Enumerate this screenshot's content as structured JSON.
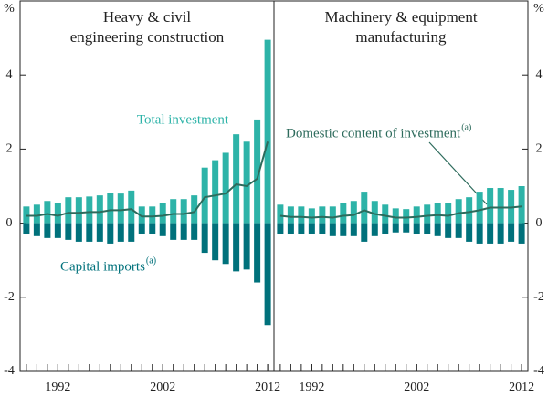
{
  "chart_data": [
    {
      "type": "bar",
      "title": [
        "Heavy & civil",
        "engineering construction"
      ],
      "y_unit": "%",
      "x": [
        1989,
        1990,
        1991,
        1992,
        1993,
        1994,
        1995,
        1996,
        1997,
        1998,
        1999,
        2000,
        2001,
        2002,
        2003,
        2004,
        2005,
        2006,
        2007,
        2008,
        2009,
        2010,
        2011,
        2012
      ],
      "xlim": [
        1988.4,
        2012.6
      ],
      "xticks": [
        1992,
        2002,
        2012
      ],
      "ylim": [
        -4,
        6
      ],
      "yticks": [
        -4,
        -2,
        0,
        2,
        4
      ],
      "series": [
        {
          "name": "Total investment",
          "type": "bar",
          "color": "#2db3a8",
          "values": [
            0.45,
            0.5,
            0.6,
            0.55,
            0.7,
            0.7,
            0.72,
            0.75,
            0.82,
            0.8,
            0.88,
            0.45,
            0.45,
            0.55,
            0.65,
            0.65,
            0.75,
            1.5,
            1.7,
            1.9,
            2.4,
            2.2,
            2.8,
            4.95
          ]
        },
        {
          "name": "Capital imports",
          "footnote_mark": "(a)",
          "type": "bar",
          "color": "#00717b",
          "values": [
            -0.3,
            -0.35,
            -0.4,
            -0.4,
            -0.45,
            -0.5,
            -0.5,
            -0.5,
            -0.55,
            -0.5,
            -0.5,
            -0.3,
            -0.3,
            -0.35,
            -0.45,
            -0.45,
            -0.45,
            -0.8,
            -1.0,
            -1.1,
            -1.3,
            -1.25,
            -1.6,
            -2.75
          ]
        },
        {
          "type": "line",
          "color": "#2d6b5c",
          "values": [
            0.2,
            0.2,
            0.25,
            0.2,
            0.28,
            0.28,
            0.3,
            0.3,
            0.35,
            0.35,
            0.38,
            0.18,
            0.18,
            0.2,
            0.25,
            0.25,
            0.3,
            0.7,
            0.75,
            0.8,
            1.05,
            1.0,
            1.2,
            2.2
          ]
        }
      ]
    },
    {
      "type": "bar",
      "title": [
        "Machinery & equipment",
        "manufacturing"
      ],
      "y_unit": "%",
      "x": [
        1989,
        1990,
        1991,
        1992,
        1993,
        1994,
        1995,
        1996,
        1997,
        1998,
        1999,
        2000,
        2001,
        2002,
        2003,
        2004,
        2005,
        2006,
        2007,
        2008,
        2009,
        2010,
        2011,
        2012
      ],
      "xlim": [
        1988.4,
        2012.6
      ],
      "xticks": [
        1992,
        2002,
        2012
      ],
      "ylim": [
        -4,
        6
      ],
      "yticks": [
        -4,
        -2,
        0,
        2,
        4
      ],
      "series": [
        {
          "type": "bar",
          "color": "#2db3a8",
          "values": [
            0.5,
            0.45,
            0.45,
            0.4,
            0.45,
            0.45,
            0.55,
            0.6,
            0.85,
            0.6,
            0.5,
            0.4,
            0.38,
            0.45,
            0.5,
            0.55,
            0.55,
            0.65,
            0.7,
            0.85,
            0.95,
            0.95,
            0.9,
            1.0
          ]
        },
        {
          "type": "bar",
          "color": "#00717b",
          "values": [
            -0.3,
            -0.3,
            -0.3,
            -0.3,
            -0.3,
            -0.35,
            -0.35,
            -0.35,
            -0.5,
            -0.35,
            -0.3,
            -0.25,
            -0.25,
            -0.3,
            -0.3,
            -0.35,
            -0.4,
            -0.4,
            -0.5,
            -0.55,
            -0.55,
            -0.55,
            -0.5,
            -0.55
          ]
        },
        {
          "name": "Domestic content of investment",
          "footnote_mark": "(a)",
          "type": "line",
          "color": "#2d6b5c",
          "values": [
            0.2,
            0.17,
            0.17,
            0.15,
            0.17,
            0.15,
            0.2,
            0.22,
            0.35,
            0.25,
            0.2,
            0.15,
            0.15,
            0.17,
            0.2,
            0.22,
            0.2,
            0.27,
            0.3,
            0.35,
            0.42,
            0.42,
            0.42,
            0.45
          ]
        }
      ]
    }
  ]
}
